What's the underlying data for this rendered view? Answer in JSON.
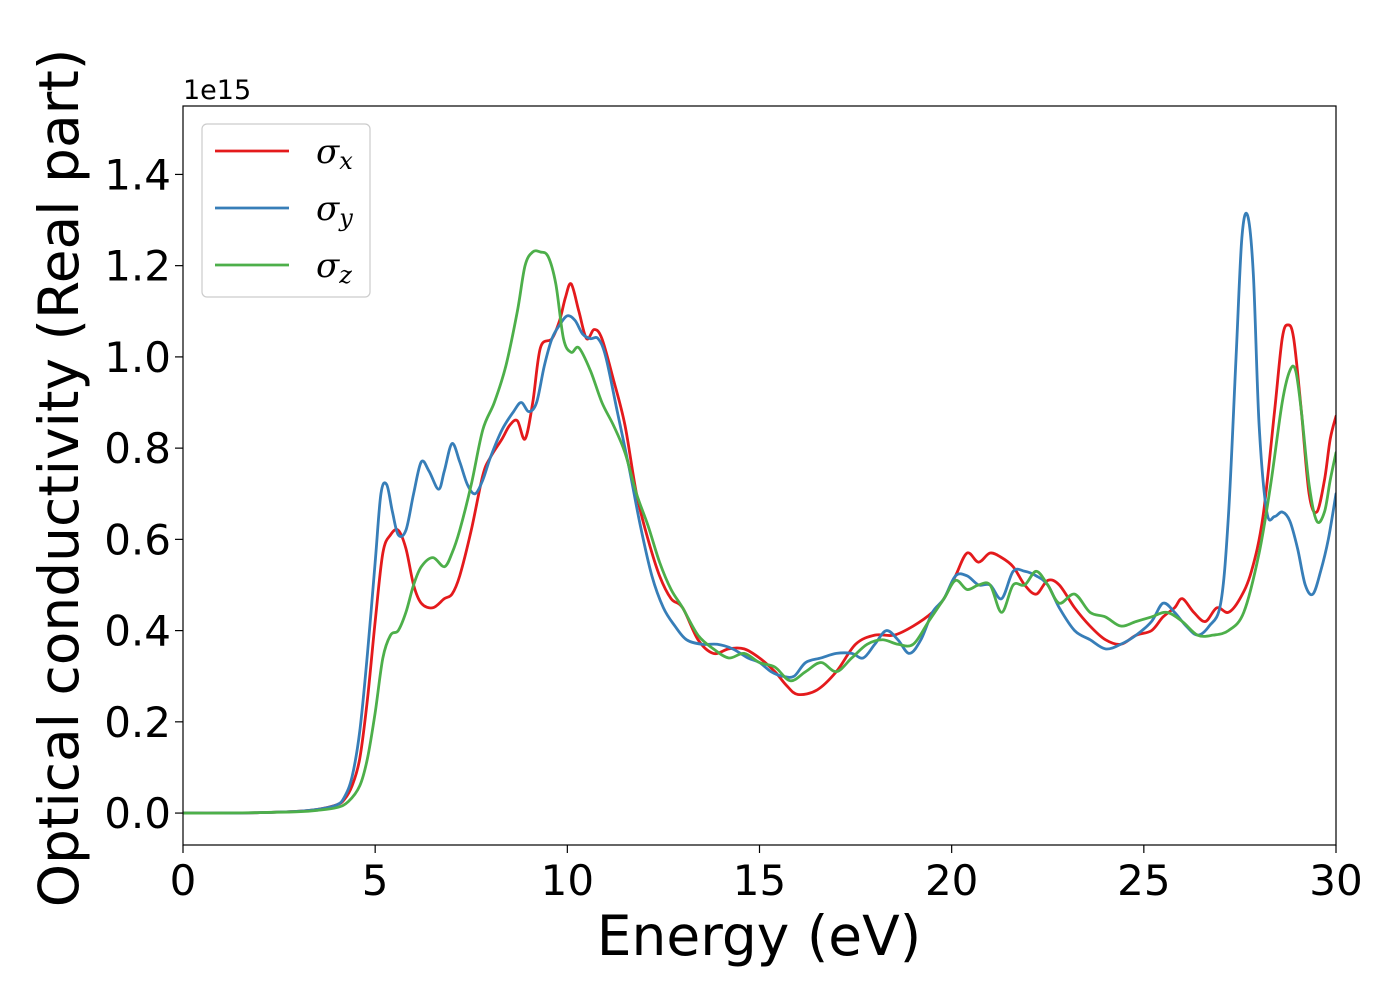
{
  "chart_data": {
    "type": "line",
    "title": "",
    "xlabel": "Energy (eV)",
    "ylabel": "Optical conductivity (Real part)",
    "y_offset_label": "1e15",
    "xlim": [
      0,
      30
    ],
    "ylim": [
      -0.07,
      1.55
    ],
    "xticks": [
      0,
      5,
      10,
      15,
      20,
      25,
      30
    ],
    "xtick_labels": [
      "0",
      "5",
      "10",
      "15",
      "20",
      "25",
      "30"
    ],
    "yticks": [
      0.0,
      0.2,
      0.4,
      0.6,
      0.8,
      1.0,
      1.2,
      1.4
    ],
    "ytick_labels": [
      "0.0",
      "0.2",
      "0.4",
      "0.6",
      "0.8",
      "1.0",
      "1.2",
      "1.4"
    ],
    "grid": false,
    "legend_position": "upper-left",
    "series": [
      {
        "name": "σx",
        "symbol": "σ",
        "subscript": "x",
        "color": "#e41a1c",
        "x": [
          0,
          1,
          2,
          3,
          3.5,
          4,
          4.2,
          4.4,
          4.6,
          4.8,
          5.0,
          5.2,
          5.4,
          5.6,
          5.8,
          6.0,
          6.2,
          6.5,
          6.8,
          7.0,
          7.2,
          7.5,
          7.8,
          8.0,
          8.3,
          8.5,
          8.7,
          8.9,
          9.1,
          9.3,
          9.6,
          9.8,
          9.95,
          10.1,
          10.3,
          10.5,
          10.7,
          10.9,
          11.2,
          11.5,
          11.8,
          12.1,
          12.4,
          12.7,
          13.0,
          13.4,
          13.8,
          14.2,
          14.6,
          15.0,
          15.4,
          15.7,
          16.0,
          16.5,
          17.0,
          17.5,
          18.0,
          18.5,
          19.0,
          19.5,
          19.8,
          20.1,
          20.4,
          20.7,
          21.0,
          21.3,
          21.6,
          21.9,
          22.2,
          22.5,
          22.8,
          23.2,
          23.6,
          24.0,
          24.4,
          24.8,
          25.2,
          25.5,
          25.8,
          26.0,
          26.3,
          26.6,
          26.9,
          27.2,
          27.5,
          27.8,
          28.1,
          28.4,
          28.6,
          28.75,
          28.9,
          29.1,
          29.3,
          29.5,
          29.7,
          29.85,
          30.0
        ],
        "y": [
          0.0,
          0.0,
          0.001,
          0.004,
          0.008,
          0.018,
          0.03,
          0.06,
          0.12,
          0.25,
          0.42,
          0.57,
          0.61,
          0.62,
          0.58,
          0.5,
          0.46,
          0.45,
          0.47,
          0.48,
          0.52,
          0.62,
          0.74,
          0.78,
          0.82,
          0.85,
          0.86,
          0.82,
          0.9,
          1.02,
          1.04,
          1.08,
          1.13,
          1.16,
          1.1,
          1.04,
          1.06,
          1.04,
          0.95,
          0.85,
          0.7,
          0.6,
          0.52,
          0.47,
          0.45,
          0.38,
          0.35,
          0.36,
          0.36,
          0.34,
          0.31,
          0.28,
          0.26,
          0.27,
          0.31,
          0.37,
          0.39,
          0.39,
          0.41,
          0.44,
          0.47,
          0.52,
          0.57,
          0.55,
          0.57,
          0.56,
          0.54,
          0.5,
          0.48,
          0.51,
          0.5,
          0.45,
          0.41,
          0.38,
          0.37,
          0.39,
          0.4,
          0.43,
          0.45,
          0.47,
          0.44,
          0.42,
          0.45,
          0.44,
          0.47,
          0.53,
          0.65,
          0.88,
          1.04,
          1.07,
          1.04,
          0.88,
          0.7,
          0.66,
          0.73,
          0.82,
          0.87
        ]
      },
      {
        "name": "σy",
        "symbol": "σ",
        "subscript": "y",
        "color": "#377eb8",
        "x": [
          0,
          1,
          2,
          3,
          3.5,
          4,
          4.2,
          4.4,
          4.6,
          4.8,
          5.0,
          5.15,
          5.3,
          5.45,
          5.6,
          5.8,
          6.0,
          6.2,
          6.4,
          6.65,
          6.8,
          7.0,
          7.2,
          7.4,
          7.6,
          7.8,
          8.0,
          8.3,
          8.6,
          8.8,
          9.0,
          9.2,
          9.4,
          9.6,
          9.8,
          10.0,
          10.2,
          10.4,
          10.6,
          10.8,
          11.0,
          11.3,
          11.6,
          11.9,
          12.2,
          12.5,
          12.8,
          13.1,
          13.5,
          13.9,
          14.3,
          14.7,
          15.0,
          15.3,
          15.6,
          15.9,
          16.2,
          16.6,
          17.0,
          17.4,
          17.7,
          18.0,
          18.3,
          18.6,
          18.9,
          19.2,
          19.5,
          19.8,
          20.1,
          20.4,
          20.7,
          21.0,
          21.3,
          21.6,
          21.9,
          22.2,
          22.5,
          22.8,
          23.2,
          23.6,
          24.0,
          24.4,
          24.8,
          25.2,
          25.5,
          25.8,
          26.1,
          26.4,
          26.7,
          27.0,
          27.2,
          27.4,
          27.55,
          27.7,
          27.85,
          28.0,
          28.2,
          28.4,
          28.6,
          28.8,
          29.0,
          29.2,
          29.4,
          29.6,
          29.8,
          30.0
        ],
        "y": [
          0.0,
          0.0,
          0.001,
          0.004,
          0.008,
          0.018,
          0.035,
          0.08,
          0.18,
          0.35,
          0.55,
          0.7,
          0.72,
          0.66,
          0.61,
          0.62,
          0.7,
          0.77,
          0.75,
          0.71,
          0.75,
          0.81,
          0.77,
          0.72,
          0.7,
          0.73,
          0.78,
          0.84,
          0.88,
          0.9,
          0.88,
          0.9,
          0.98,
          1.04,
          1.07,
          1.09,
          1.08,
          1.05,
          1.04,
          1.04,
          1.0,
          0.88,
          0.76,
          0.63,
          0.52,
          0.45,
          0.41,
          0.38,
          0.37,
          0.37,
          0.36,
          0.34,
          0.33,
          0.31,
          0.3,
          0.3,
          0.33,
          0.34,
          0.35,
          0.35,
          0.34,
          0.37,
          0.4,
          0.38,
          0.35,
          0.38,
          0.44,
          0.47,
          0.52,
          0.52,
          0.5,
          0.5,
          0.47,
          0.53,
          0.53,
          0.52,
          0.5,
          0.45,
          0.4,
          0.38,
          0.36,
          0.37,
          0.39,
          0.42,
          0.46,
          0.44,
          0.41,
          0.39,
          0.41,
          0.46,
          0.65,
          1.0,
          1.26,
          1.31,
          1.18,
          0.85,
          0.66,
          0.65,
          0.66,
          0.64,
          0.58,
          0.5,
          0.48,
          0.53,
          0.6,
          0.7
        ]
      },
      {
        "name": "σz",
        "symbol": "σ",
        "subscript": "z",
        "color": "#4daf4a",
        "x": [
          0,
          1,
          2,
          3,
          3.5,
          4,
          4.3,
          4.6,
          4.8,
          5.0,
          5.2,
          5.4,
          5.6,
          5.8,
          6.0,
          6.2,
          6.5,
          6.8,
          7.0,
          7.2,
          7.5,
          7.8,
          8.1,
          8.4,
          8.7,
          8.9,
          9.1,
          9.3,
          9.5,
          9.7,
          9.9,
          10.1,
          10.3,
          10.6,
          10.9,
          11.2,
          11.5,
          11.8,
          12.1,
          12.4,
          12.7,
          13.0,
          13.4,
          13.8,
          14.2,
          14.6,
          15.0,
          15.4,
          15.8,
          16.2,
          16.6,
          17.0,
          17.4,
          17.8,
          18.2,
          18.6,
          19.0,
          19.4,
          19.8,
          20.1,
          20.4,
          20.7,
          21.0,
          21.3,
          21.6,
          21.9,
          22.2,
          22.5,
          22.8,
          23.2,
          23.6,
          24.0,
          24.4,
          24.8,
          25.2,
          25.6,
          26.0,
          26.4,
          26.8,
          27.2,
          27.6,
          28.0,
          28.3,
          28.6,
          28.8,
          28.95,
          29.1,
          29.3,
          29.5,
          29.7,
          29.85,
          30.0
        ],
        "y": [
          0.0,
          0.0,
          0.001,
          0.003,
          0.006,
          0.012,
          0.025,
          0.06,
          0.12,
          0.22,
          0.34,
          0.39,
          0.4,
          0.44,
          0.5,
          0.54,
          0.56,
          0.54,
          0.57,
          0.62,
          0.72,
          0.84,
          0.9,
          0.98,
          1.1,
          1.2,
          1.23,
          1.23,
          1.22,
          1.16,
          1.04,
          1.01,
          1.02,
          0.97,
          0.9,
          0.85,
          0.79,
          0.7,
          0.63,
          0.55,
          0.49,
          0.45,
          0.39,
          0.36,
          0.34,
          0.35,
          0.33,
          0.32,
          0.29,
          0.31,
          0.33,
          0.31,
          0.34,
          0.37,
          0.38,
          0.37,
          0.37,
          0.42,
          0.47,
          0.51,
          0.49,
          0.5,
          0.5,
          0.44,
          0.5,
          0.5,
          0.53,
          0.5,
          0.46,
          0.48,
          0.44,
          0.43,
          0.41,
          0.42,
          0.43,
          0.44,
          0.42,
          0.39,
          0.39,
          0.4,
          0.44,
          0.57,
          0.72,
          0.9,
          0.97,
          0.97,
          0.88,
          0.72,
          0.64,
          0.66,
          0.73,
          0.79
        ]
      }
    ]
  }
}
